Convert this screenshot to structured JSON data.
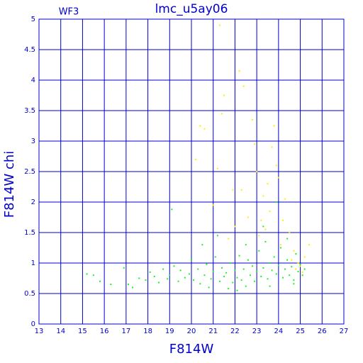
{
  "chart_data": {
    "type": "scatter",
    "title": "lmc_u5ay06",
    "annotation": "WF3",
    "x_label": "F814W",
    "y_label": "F814W chi",
    "xlim": [
      13,
      27
    ],
    "ylim": [
      0,
      5
    ],
    "xticks": [
      13,
      14,
      15,
      16,
      17,
      18,
      19,
      20,
      21,
      22,
      23,
      24,
      25,
      26,
      27
    ],
    "yticks": [
      0,
      0.5,
      1,
      1.5,
      2,
      2.5,
      3,
      3.5,
      4,
      4.5,
      5
    ],
    "grid": true,
    "axis_color": "#0000cc",
    "series": [
      {
        "color": "#22ee22",
        "x": [
          15.2,
          15.5,
          15.8,
          16.3,
          16.9,
          17.1,
          17.3,
          17.6,
          17.9,
          18.1,
          18.3,
          18.5,
          18.7,
          18.9,
          19.0,
          19.2,
          19.4,
          19.5,
          19.7,
          19.9,
          20.0,
          20.1,
          20.3,
          20.4,
          20.6,
          20.7,
          20.9,
          21.0,
          21.1,
          21.3,
          21.4,
          21.5,
          21.6,
          21.8,
          21.9,
          22.0,
          22.1,
          22.2,
          22.3,
          22.4,
          22.5,
          22.6,
          22.7,
          22.8,
          22.9,
          23.0,
          23.1,
          23.2,
          23.3,
          23.4,
          23.5,
          23.6,
          23.7,
          23.8,
          23.9,
          24.0,
          24.1,
          24.2,
          24.3,
          24.4,
          24.5,
          24.6,
          24.7,
          24.8,
          24.9,
          25.0,
          25.1,
          25.2,
          19.1,
          20.5,
          21.2,
          22.5,
          23.3,
          23.9,
          24.4,
          22.1,
          20.8,
          21.7,
          23.6,
          24.7
        ],
        "values": [
          0.82,
          0.8,
          0.7,
          0.65,
          0.92,
          0.65,
          0.6,
          0.75,
          0.72,
          0.85,
          0.78,
          0.68,
          0.9,
          0.74,
          0.8,
          0.95,
          0.7,
          0.88,
          0.76,
          0.82,
          1.05,
          0.72,
          0.9,
          0.66,
          0.8,
          0.98,
          0.74,
          0.86,
          1.1,
          0.7,
          0.92,
          0.78,
          0.84,
          1.0,
          0.68,
          0.88,
          0.76,
          1.12,
          0.72,
          0.9,
          0.62,
          1.05,
          0.8,
          0.95,
          0.7,
          0.86,
          1.2,
          0.78,
          0.92,
          1.35,
          0.74,
          1.0,
          0.88,
          1.1,
          0.82,
          0.96,
          1.25,
          0.76,
          0.9,
          1.05,
          0.8,
          0.94,
          0.72,
          1.15,
          0.86,
          0.98,
          0.8,
          0.9,
          1.88,
          1.3,
          1.45,
          1.3,
          1.6,
          2.0,
          1.4,
          0.55,
          0.6,
          0.58,
          0.62,
          0.66
        ]
      },
      {
        "color": "#ffee00",
        "x": [
          20.4,
          20.6,
          21.3,
          21.4,
          21.5,
          21.9,
          22.2,
          22.4,
          22.8,
          23.0,
          23.3,
          23.5,
          23.7,
          23.8,
          23.9,
          24.0,
          24.2,
          24.5,
          24.7,
          24.9,
          25.0,
          25.2,
          25.4,
          21.0,
          22.0,
          22.6,
          23.1,
          23.6,
          24.3,
          24.8,
          20.2,
          21.7,
          22.3,
          23.4,
          24.1,
          25.1,
          24.6,
          23.2,
          22.9,
          21.2
        ],
        "values": [
          3.25,
          3.2,
          4.9,
          3.45,
          3.75,
          2.2,
          4.15,
          3.9,
          3.35,
          2.5,
          2.1,
          2.3,
          2.9,
          3.25,
          2.6,
          2.4,
          1.7,
          1.5,
          1.2,
          1.0,
          0.95,
          1.1,
          1.3,
          1.95,
          1.6,
          1.75,
          1.45,
          1.85,
          2.05,
          0.9,
          2.7,
          1.4,
          2.2,
          1.55,
          1.3,
          0.85,
          1.05,
          1.7,
          2.95,
          2.55
        ]
      }
    ]
  }
}
